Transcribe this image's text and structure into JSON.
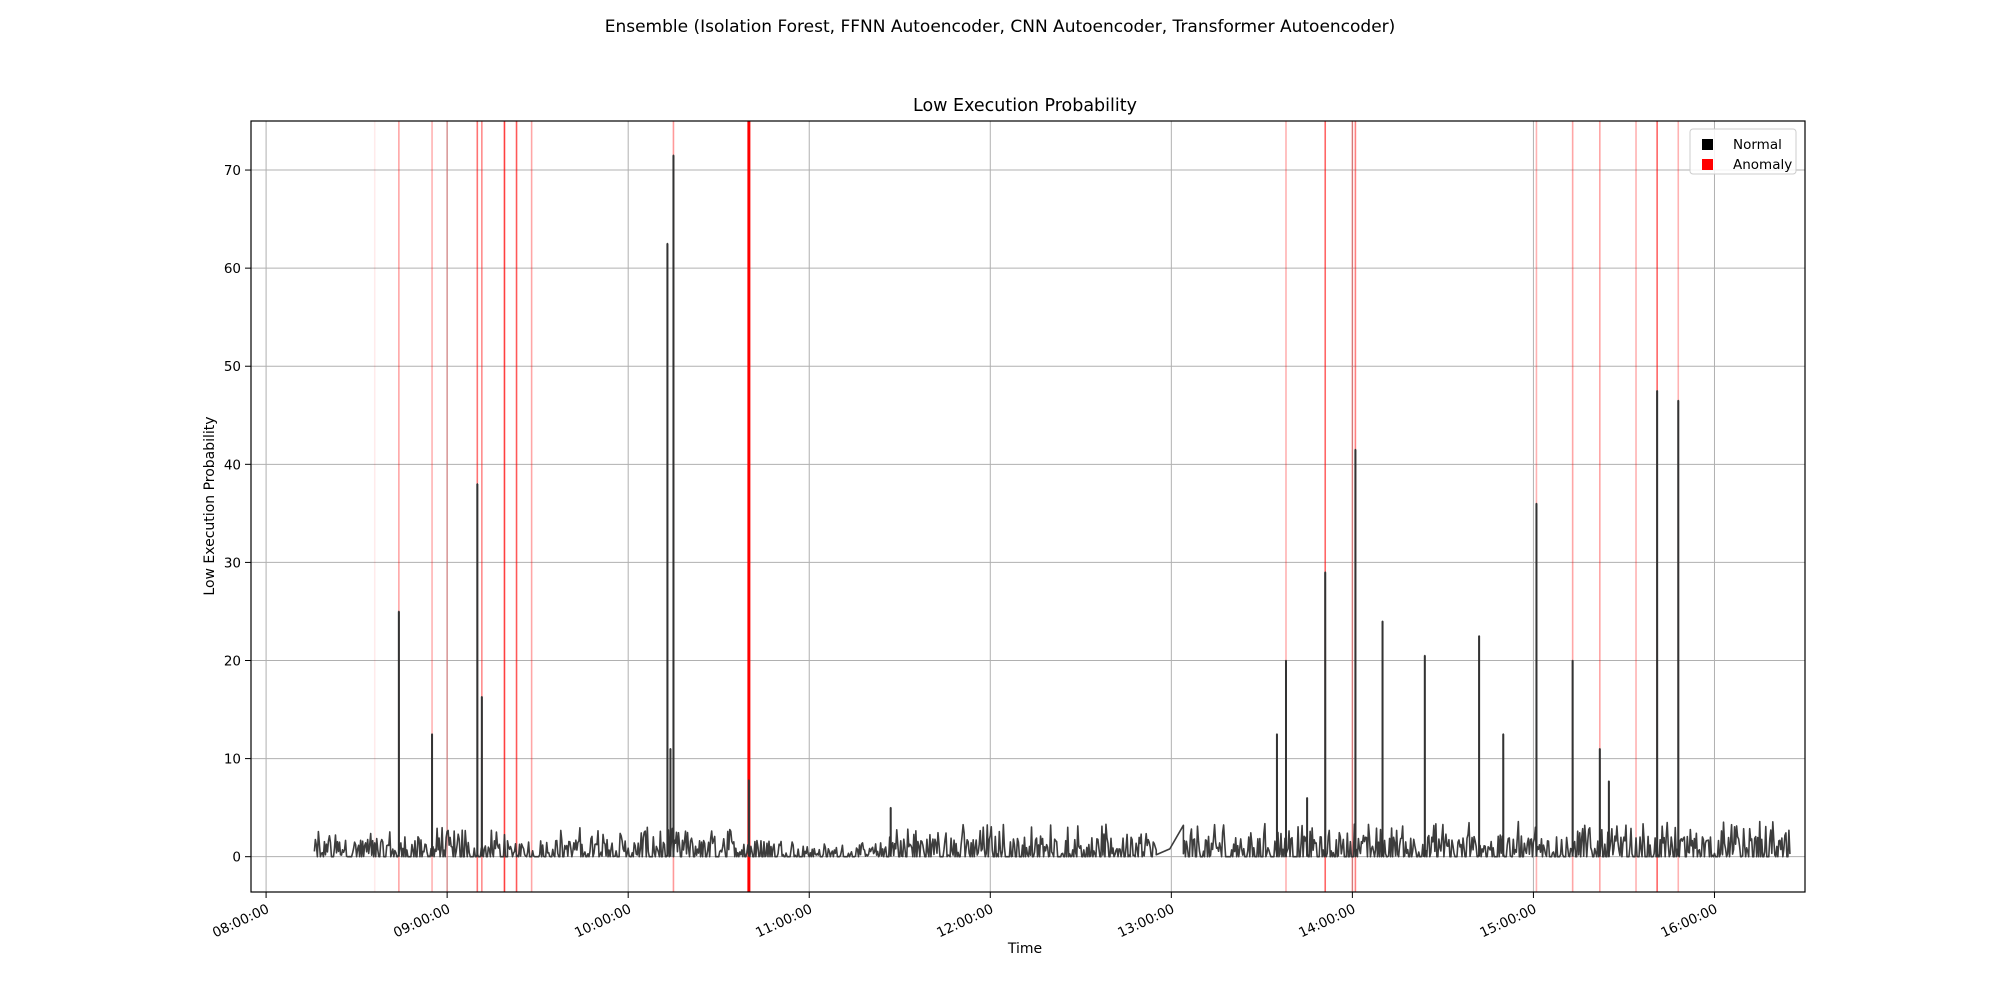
{
  "figure": {
    "suptitle": "Ensemble (Isolation Forest, FFNN Autoencoder, CNN Autoencoder, Transformer Autoencoder)"
  },
  "colors": {
    "normal": "#000000",
    "anomaly": "#ff0000",
    "line": "#333333",
    "grid": "#b0b0b0",
    "background": "#ffffff"
  },
  "chart_data": {
    "type": "line",
    "title": "Low Execution Probability",
    "xlabel": "Time",
    "ylabel": "Low Execution Probability",
    "x_type": "time",
    "xlim": [
      "07:55:00",
      "16:30:00"
    ],
    "ylim": [
      -3.6,
      75
    ],
    "x_ticks": [
      "08:00:00",
      "09:00:00",
      "10:00:00",
      "11:00:00",
      "12:00:00",
      "13:00:00",
      "14:00:00",
      "15:00:00",
      "16:00:00"
    ],
    "y_ticks": [
      0,
      10,
      20,
      30,
      40,
      50,
      60,
      70
    ],
    "grid": true,
    "legend": {
      "position": "top-right",
      "entries": [
        {
          "label": "Normal",
          "color": "#000000"
        },
        {
          "label": "Anomaly",
          "color": "#ff0000"
        }
      ]
    },
    "series": [
      {
        "name": "Low Execution Probability",
        "color": "#333333",
        "spikes": [
          {
            "x": "08:44:00",
            "y": 25
          },
          {
            "x": "08:55:00",
            "y": 12.5
          },
          {
            "x": "09:10:00",
            "y": 38
          },
          {
            "x": "09:11:30",
            "y": 16.3
          },
          {
            "x": "10:13:00",
            "y": 62.5
          },
          {
            "x": "10:14:00",
            "y": 11
          },
          {
            "x": "10:15:00",
            "y": 71.5
          },
          {
            "x": "10:40:00",
            "y": 7.8
          },
          {
            "x": "11:27:00",
            "y": 5
          },
          {
            "x": "13:35:00",
            "y": 12.5
          },
          {
            "x": "13:38:00",
            "y": 20
          },
          {
            "x": "13:45:00",
            "y": 6
          },
          {
            "x": "13:51:00",
            "y": 29
          },
          {
            "x": "14:01:00",
            "y": 41.5
          },
          {
            "x": "14:10:00",
            "y": 24
          },
          {
            "x": "14:24:00",
            "y": 20.5
          },
          {
            "x": "14:42:00",
            "y": 22.5
          },
          {
            "x": "14:50:00",
            "y": 12.5
          },
          {
            "x": "15:01:00",
            "y": 36
          },
          {
            "x": "15:13:00",
            "y": 20
          },
          {
            "x": "15:22:00",
            "y": 11
          },
          {
            "x": "15:25:00",
            "y": 7.7
          },
          {
            "x": "15:41:00",
            "y": 47.5
          },
          {
            "x": "15:48:00",
            "y": 46.5
          }
        ],
        "baseline": {
          "segments": [
            {
              "start": "08:16:00",
              "end": "09:20:00",
              "typical_max": 2.5
            },
            {
              "start": "09:20:00",
              "end": "09:30:00",
              "typical_max": 1.5
            },
            {
              "start": "09:30:00",
              "end": "10:55:00",
              "typical_max": 2.5
            },
            {
              "start": "10:55:00",
              "end": "11:25:00",
              "typical_max": 1.2
            },
            {
              "start": "11:25:00",
              "end": "12:55:00",
              "typical_max": 2.8
            },
            {
              "start": "13:04:00",
              "end": "16:25:00",
              "typical_max": 3.0
            }
          ],
          "gaps": [
            {
              "start": "12:55:00",
              "end": "13:04:00",
              "y": 0.8
            }
          ]
        }
      }
    ],
    "anomalies": [
      {
        "x": "08:36:00",
        "opacity": 0.08
      },
      {
        "x": "08:44:00",
        "opacity": 0.35
      },
      {
        "x": "08:55:00",
        "opacity": 0.3
      },
      {
        "x": "09:00:00",
        "opacity": 0.25
      },
      {
        "x": "09:10:00",
        "opacity": 0.55
      },
      {
        "x": "09:11:30",
        "opacity": 0.45
      },
      {
        "x": "09:19:00",
        "opacity": 0.75
      },
      {
        "x": "09:23:00",
        "opacity": 0.65
      },
      {
        "x": "09:28:00",
        "opacity": 0.35
      },
      {
        "x": "10:15:00",
        "opacity": 0.4
      },
      {
        "x": "10:40:00",
        "opacity": 1.0
      },
      {
        "x": "13:38:00",
        "opacity": 0.3
      },
      {
        "x": "13:51:00",
        "opacity": 0.6
      },
      {
        "x": "14:00:00",
        "opacity": 0.35
      },
      {
        "x": "14:01:00",
        "opacity": 0.5
      },
      {
        "x": "15:01:00",
        "opacity": 0.3
      },
      {
        "x": "15:13:00",
        "opacity": 0.35
      },
      {
        "x": "15:22:00",
        "opacity": 0.35
      },
      {
        "x": "15:34:00",
        "opacity": 0.3
      },
      {
        "x": "15:41:00",
        "opacity": 0.6
      },
      {
        "x": "15:48:00",
        "opacity": 0.3
      }
    ]
  }
}
